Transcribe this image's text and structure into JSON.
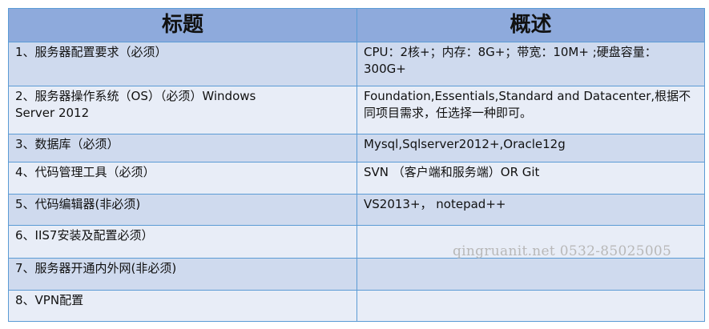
{
  "header": {
    "col1": "标题",
    "col2": "概述"
  },
  "rows": [
    {
      "title": "1、服务器配置要求（必须）",
      "desc": "CPU：2核+；内存：8G+；带宽：10M+ ;硬盘容量：300G+"
    },
    {
      "title": "2、服务器操作系统（OS）（必须）Windows Server 2012",
      "desc": "Foundation,Essentials,Standard and Datacenter,根据不同项目需求，任选择一种即可。"
    },
    {
      "title": "3、数据库（必须）",
      "desc": "Mysql,Sqlserver2012+,Oracle12g"
    },
    {
      "title": "4、代码管理工具（必须）",
      "desc": "SVN （客户端和服务端）OR Git"
    },
    {
      "title": "5、代码编辑器(非必须)",
      "desc": "VS2013+， notepad++"
    },
    {
      "title": "6、IIS7安装及配置必须）",
      "desc": ""
    },
    {
      "title": "7、服务器开通内外网(非必须)",
      "desc": ""
    },
    {
      "title": "8、VPN配置",
      "desc": ""
    }
  ],
  "watermark": "qingruanit.net 0532-85025005"
}
